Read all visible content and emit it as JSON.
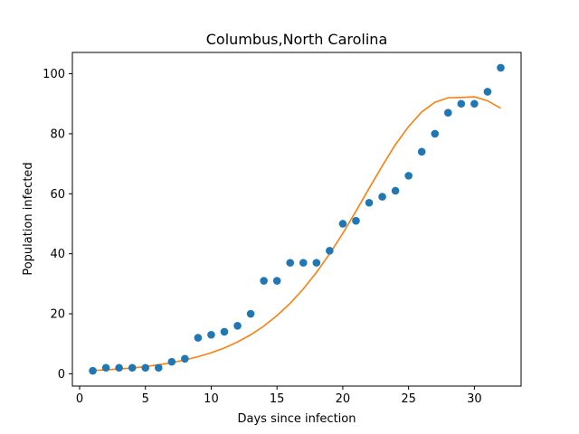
{
  "chart_data": {
    "type": "scatter",
    "title": "Columbus,North Carolina",
    "xlabel": "Days since infection",
    "ylabel": "Population infected",
    "xlim": [
      -0.55,
      33.55
    ],
    "ylim": [
      -4.1,
      107.1
    ],
    "xticks": [
      0,
      5,
      10,
      15,
      20,
      25,
      30
    ],
    "yticks": [
      0,
      20,
      40,
      60,
      80,
      100
    ],
    "grid": false,
    "legend": "none",
    "series": [
      {
        "type": "scatter",
        "color": "#1f77b4",
        "x": [
          1,
          2,
          3,
          4,
          5,
          6,
          7,
          8,
          9,
          10,
          11,
          12,
          13,
          14,
          15,
          16,
          17,
          18,
          19,
          20,
          21,
          22,
          23,
          24,
          25,
          26,
          27,
          28,
          29,
          30,
          31,
          32
        ],
        "y": [
          1,
          2,
          2,
          2,
          2,
          2,
          4,
          5,
          12,
          13,
          14,
          16,
          20,
          31,
          31,
          37,
          37,
          37,
          41,
          50,
          51,
          57,
          59,
          61,
          66,
          74,
          80,
          87,
          90,
          90,
          94,
          102
        ]
      },
      {
        "type": "line",
        "color": "#ff7f0e",
        "x": [
          1,
          2,
          3,
          4,
          5,
          6,
          7,
          8,
          9,
          10,
          11,
          12,
          13,
          14,
          15,
          16,
          17,
          18,
          19,
          20,
          21,
          22,
          23,
          24,
          25,
          26,
          27,
          28,
          29,
          30,
          31,
          32
        ],
        "y": [
          1.1,
          1.3,
          1.6,
          1.9,
          2.4,
          3.0,
          3.7,
          4.6,
          5.7,
          7.0,
          8.6,
          10.6,
          13.0,
          15.9,
          19.4,
          23.5,
          28.3,
          33.8,
          40.0,
          46.8,
          54.2,
          61.8,
          69.3,
          76.4,
          82.4,
          87.3,
          90.5,
          92.0,
          92.1,
          92.3,
          91.0,
          88.5
        ]
      }
    ]
  }
}
